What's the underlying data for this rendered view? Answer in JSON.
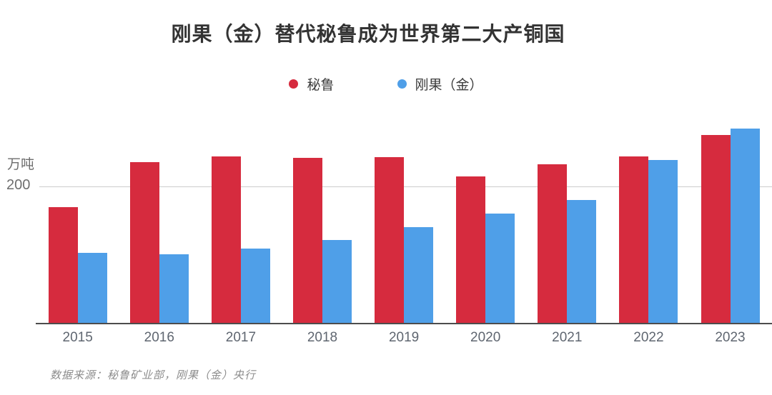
{
  "title": "刚果（金）替代秘鲁成为世界第二大产铜国",
  "legend": [
    {
      "label": "秘鲁",
      "color": "#d62b3e"
    },
    {
      "label": "刚果（金）",
      "color": "#4f9fe8"
    }
  ],
  "y_axis": {
    "unit_label": "万吨",
    "tick_label": "200",
    "tick_value": 200
  },
  "source": "数据来源：秘鲁矿业部，刚果（金）央行",
  "colors": {
    "peru_bar": "#d62b3e",
    "congo_bar": "#4f9fe8",
    "gridline": "#cccccc",
    "axis": "#4d4d4d",
    "background": "#ffffff"
  },
  "chart_data": {
    "type": "bar",
    "title": "刚果（金）替代秘鲁成为世界第二大产铜国",
    "categories": [
      "2015",
      "2016",
      "2017",
      "2018",
      "2019",
      "2020",
      "2021",
      "2022",
      "2023"
    ],
    "series": [
      {
        "name": "秘鲁",
        "slug": "peru",
        "color": "#d62b3e",
        "values": [
          170,
          235,
          244,
          242,
          243,
          215,
          232,
          244,
          275
        ]
      },
      {
        "name": "刚果（金）",
        "slug": "congo",
        "color": "#4f9fe8",
        "values": [
          103,
          101,
          109,
          122,
          141,
          160,
          180,
          239,
          284
        ]
      }
    ],
    "xlabel": "",
    "ylabel": "万吨",
    "yticks": [
      200
    ],
    "ylim": [
      0,
      300
    ],
    "grid": "single horizontal gridline at y=200",
    "legend_position": "top-center",
    "bar_style": "grouped, adjacent bars, no gap within group"
  }
}
